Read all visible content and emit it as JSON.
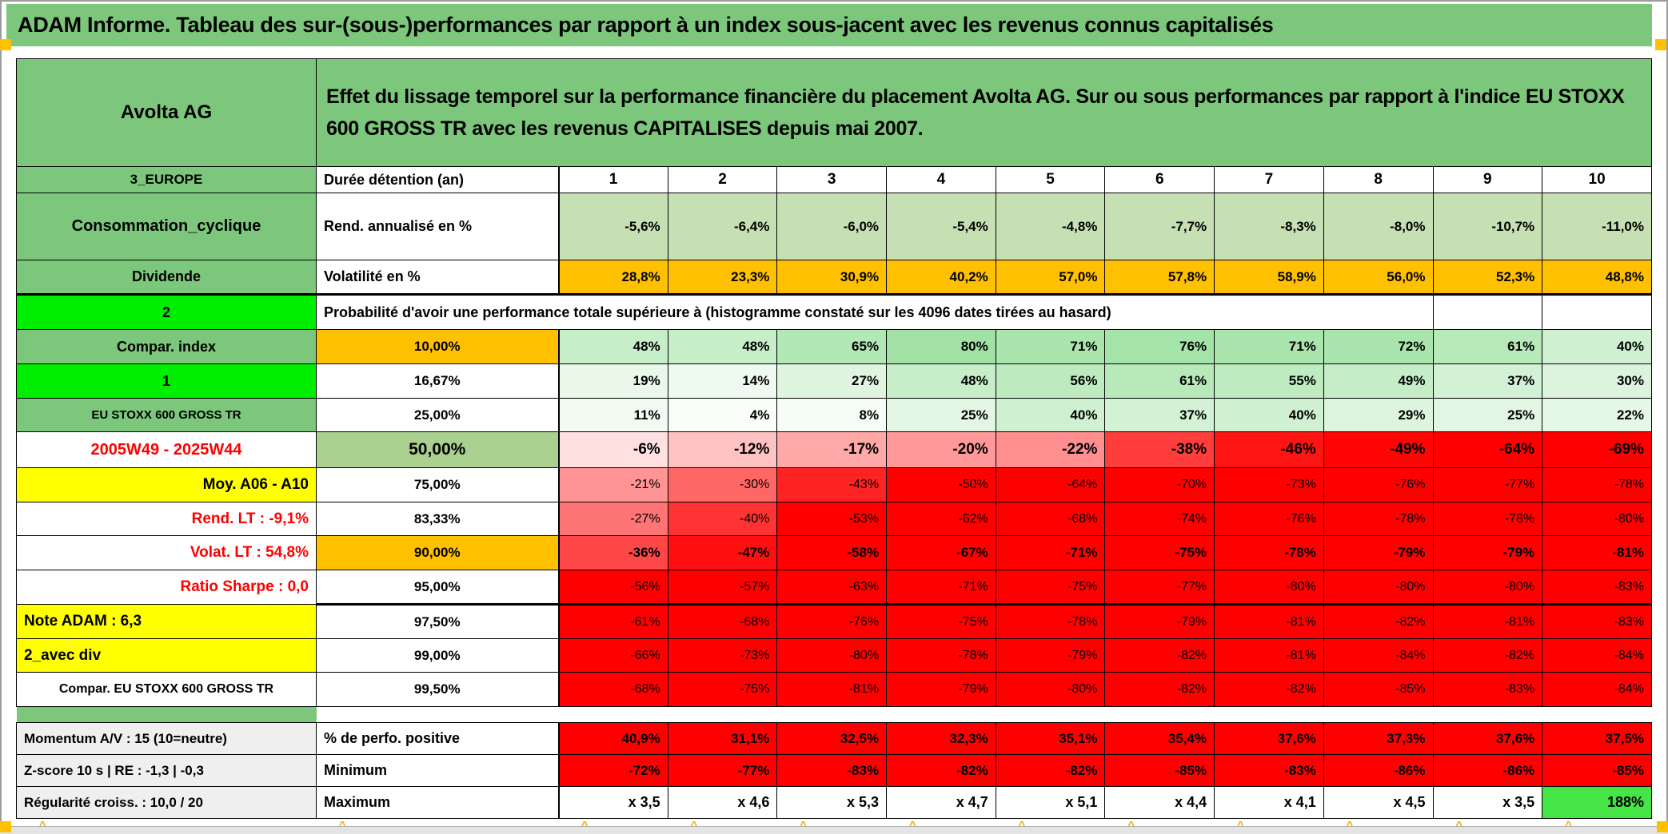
{
  "banner_title": "ADAM Informe. Tableau des sur-(sous-)performances par rapport à un index sous-jacent avec les revenus connus capitalisés",
  "header": {
    "asset": "Avolta AG",
    "description": "Effet du lissage temporel sur la performance financière du placement Avolta AG. Sur ou sous performances par rapport à l'indice EU STOXX 600 GROSS TR avec les revenus CAPITALISES depuis mai 2007."
  },
  "labels": [
    "3_EUROPE",
    "Consommation_cyclique",
    "Dividende",
    "2",
    "Compar. index",
    "1",
    "EU STOXX 600 GROSS TR",
    "2005W49 - 2025W44",
    "Moy. A06 - A10",
    "Rend. LT :   -9,1%",
    "Volat. LT :   54,8%",
    "Ratio Sharpe :   0,0",
    "Note ADAM : 6,3",
    "2_avec div",
    "Compar. EU STOXX 600 GROSS TR",
    "Momentum A/V : 15 (10=neutre)",
    "Z-score 10 s | RE : -1,3 | -0,3",
    "Régularité croiss. : 10,0 / 20"
  ],
  "table": {
    "duration_label": "Durée détention (an)",
    "durations": [
      "1",
      "2",
      "3",
      "4",
      "5",
      "6",
      "7",
      "8",
      "9",
      "10"
    ],
    "annualized": {
      "label": "Rend. annualisé en %",
      "values": [
        "-5,6%",
        "-6,4%",
        "-6,0%",
        "-5,4%",
        "-4,8%",
        "-7,7%",
        "-8,3%",
        "-8,0%",
        "-10,7%",
        "-11,0%"
      ]
    },
    "volatility": {
      "label": "Volatilité en %",
      "values": [
        "28,8%",
        "23,3%",
        "30,9%",
        "40,2%",
        "57,0%",
        "57,8%",
        "58,9%",
        "56,0%",
        "52,3%",
        "48,8%"
      ]
    },
    "probability_note": "Probabilité d'avoir une performance totale supérieure à (histogramme constaté sur les 4096 dates tirées au hasard)",
    "probability_rows": [
      {
        "threshold": "10,00%",
        "values": [
          "48%",
          "48%",
          "65%",
          "80%",
          "71%",
          "76%",
          "71%",
          "72%",
          "61%",
          "40%"
        ]
      },
      {
        "threshold": "16,67%",
        "values": [
          "19%",
          "14%",
          "27%",
          "48%",
          "56%",
          "61%",
          "55%",
          "49%",
          "37%",
          "30%"
        ]
      },
      {
        "threshold": "25,00%",
        "values": [
          "11%",
          "4%",
          "8%",
          "25%",
          "40%",
          "37%",
          "40%",
          "29%",
          "25%",
          "22%"
        ]
      },
      {
        "threshold": "50,00%",
        "values": [
          "-6%",
          "-12%",
          "-17%",
          "-20%",
          "-22%",
          "-38%",
          "-46%",
          "-49%",
          "-64%",
          "-69%"
        ]
      },
      {
        "threshold": "75,00%",
        "values": [
          "-21%",
          "-30%",
          "-43%",
          "-50%",
          "-64%",
          "-70%",
          "-73%",
          "-76%",
          "-77%",
          "-78%"
        ]
      },
      {
        "threshold": "83,33%",
        "values": [
          "-27%",
          "-40%",
          "-53%",
          "-62%",
          "-68%",
          "-74%",
          "-76%",
          "-78%",
          "-78%",
          "-80%"
        ]
      },
      {
        "threshold": "90,00%",
        "values": [
          "-36%",
          "-47%",
          "-58%",
          "-67%",
          "-71%",
          "-75%",
          "-78%",
          "-79%",
          "-79%",
          "-81%"
        ]
      },
      {
        "threshold": "95,00%",
        "values": [
          "-56%",
          "-57%",
          "-63%",
          "-71%",
          "-75%",
          "-77%",
          "-80%",
          "-80%",
          "-80%",
          "-83%"
        ]
      },
      {
        "threshold": "97,50%",
        "values": [
          "-61%",
          "-68%",
          "-76%",
          "-75%",
          "-78%",
          "-79%",
          "-81%",
          "-82%",
          "-81%",
          "-83%"
        ]
      },
      {
        "threshold": "99,00%",
        "values": [
          "-66%",
          "-73%",
          "-80%",
          "-78%",
          "-79%",
          "-82%",
          "-81%",
          "-84%",
          "-82%",
          "-84%"
        ]
      },
      {
        "threshold": "99,50%",
        "values": [
          "-68%",
          "-75%",
          "-81%",
          "-79%",
          "-80%",
          "-82%",
          "-82%",
          "-85%",
          "-83%",
          "-84%"
        ]
      }
    ],
    "positive": {
      "label": "% de perfo. positive",
      "values": [
        "40,9%",
        "31,1%",
        "32,5%",
        "32,3%",
        "35,1%",
        "35,4%",
        "37,6%",
        "37,3%",
        "37,6%",
        "37,5%"
      ]
    },
    "minimum": {
      "label": "Minimum",
      "values": [
        "-72%",
        "-77%",
        "-83%",
        "-82%",
        "-82%",
        "-85%",
        "-83%",
        "-86%",
        "-86%",
        "-85%"
      ]
    },
    "maximum": {
      "label": "Maximum",
      "values": [
        "x 3,5",
        "x 4,6",
        "x 5,3",
        "x 4,7",
        "x 5,1",
        "x 4,4",
        "x 4,1",
        "x 4,5",
        "x 3,5",
        "188%"
      ]
    }
  },
  "colors": {
    "green": "#7CC77C",
    "bgreen": "#00EE00",
    "lgreen": "#C6E0B4",
    "mgreen": "#A9D08E",
    "maxgreen": "#44E544",
    "orange": "#FFC000",
    "yellow": "#FFFF00",
    "red": "#FF0000",
    "grayl": "#EFEFEF"
  }
}
